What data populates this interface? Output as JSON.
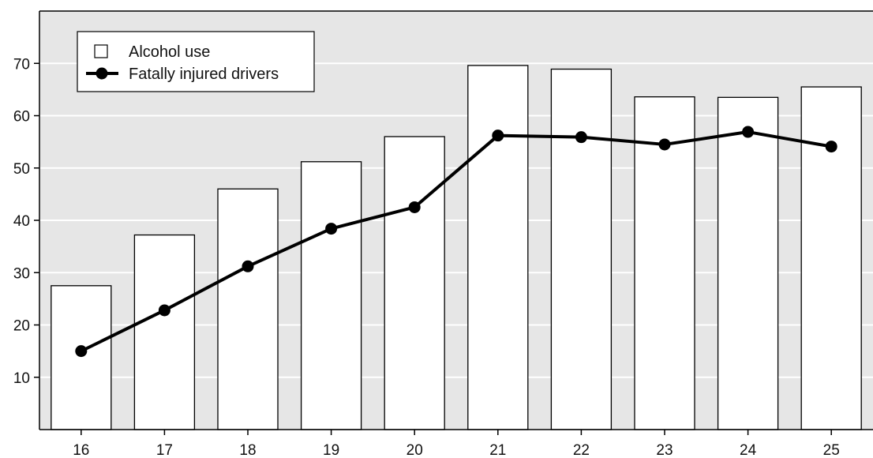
{
  "chart_data": {
    "type": "bar",
    "categories": [
      "16",
      "17",
      "18",
      "19",
      "20",
      "21",
      "22",
      "23",
      "24",
      "25"
    ],
    "series": [
      {
        "name": "Alcohol use",
        "kind": "bar",
        "values": [
          27.5,
          37.2,
          46.0,
          51.2,
          56.0,
          69.6,
          68.9,
          63.6,
          63.5,
          65.5
        ]
      },
      {
        "name": "Fatally injured drivers",
        "kind": "line",
        "values": [
          15.0,
          22.8,
          31.2,
          38.4,
          42.5,
          56.2,
          55.9,
          54.5,
          56.9,
          54.1
        ]
      }
    ],
    "y_ticks": [
      10,
      20,
      30,
      40,
      50,
      60,
      70
    ],
    "ylim": [
      0,
      80
    ],
    "grid": true,
    "legend_position": "top-left",
    "colors": {
      "plot_background": "#e6e6e6",
      "grid": "#ffffff",
      "bar_fill": "#ffffff",
      "bar_stroke": "#000000",
      "line": "#000000"
    }
  }
}
